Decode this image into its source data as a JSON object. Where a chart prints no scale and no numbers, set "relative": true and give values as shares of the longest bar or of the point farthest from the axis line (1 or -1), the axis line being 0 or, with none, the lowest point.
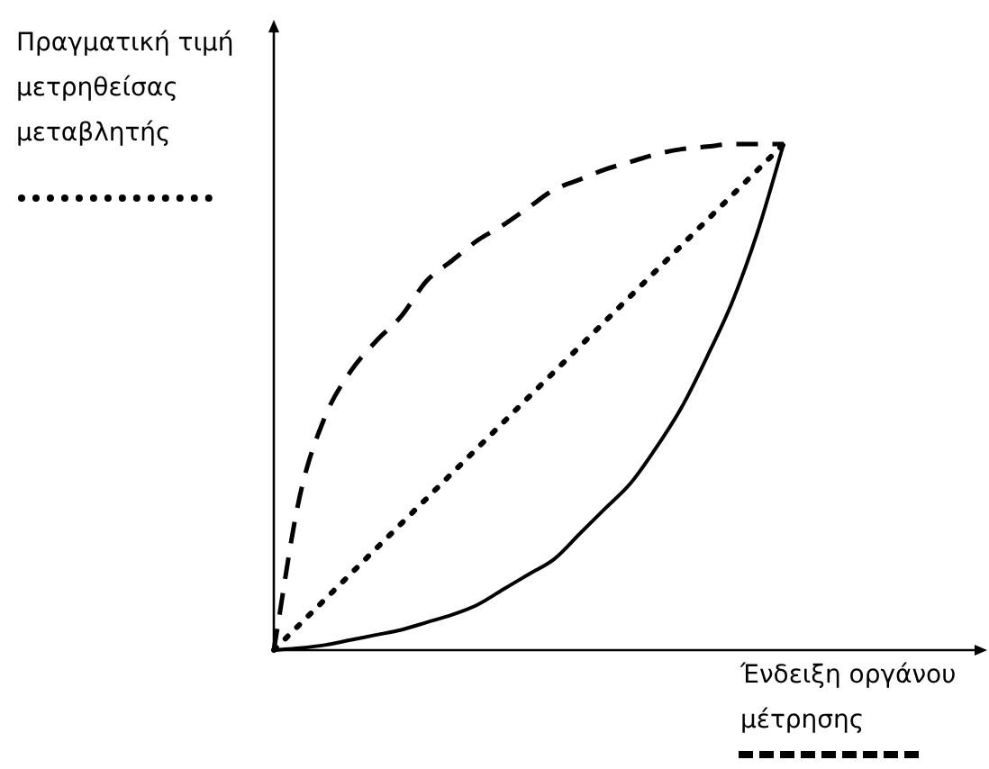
{
  "chart_data": {
    "type": "line",
    "relative": true,
    "xlabel": "Ένδειξη οργάνου μέτρησης",
    "ylabel": "Πραγματική τιμή μετρηθείσας μεταβλητής",
    "tick_labels": false,
    "legend": false,
    "marker": "none",
    "categories": [
      null,
      null,
      null,
      null,
      null,
      null,
      null,
      null,
      null,
      null,
      null,
      null,
      null,
      null,
      null,
      null,
      null,
      null,
      null,
      null,
      null
    ],
    "series": [
      {
        "color": "#000000",
        "line_style": "dotted",
        "values": [
          0,
          0.05,
          0.1,
          0.15,
          0.2,
          0.25,
          0.3,
          0.35,
          0.4,
          0.45,
          0.5,
          0.55,
          0.6,
          0.65,
          0.7,
          0.75,
          0.8,
          0.85,
          0.9,
          0.95,
          1
        ]
      },
      {
        "color": "#000000",
        "line_style": "dashed",
        "values": [
          0,
          0.3,
          0.46,
          0.55,
          0.61,
          0.66,
          0.73,
          0.77,
          0.81,
          0.84,
          0.875,
          0.91,
          0.93,
          0.95,
          0.965,
          0.98,
          0.99,
          0.995,
          1,
          1,
          1
        ]
      },
      {
        "color": "#000000",
        "line_style": "solid",
        "values": [
          0,
          0.004,
          0.01,
          0.02,
          0.03,
          0.04,
          0.055,
          0.07,
          0.09,
          0.12,
          0.15,
          0.18,
          0.23,
          0.28,
          0.33,
          0.4,
          0.48,
          0.58,
          0.69,
          0.83,
          1
        ]
      }
    ]
  }
}
